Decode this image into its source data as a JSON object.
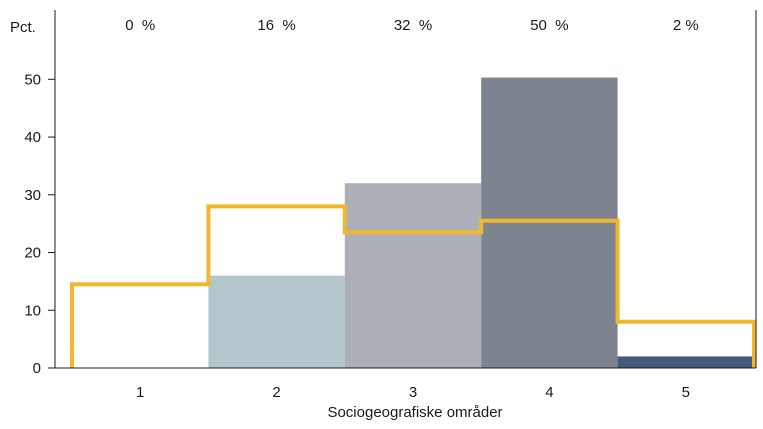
{
  "chart_data": {
    "type": "bar",
    "ylabel": "Pct.",
    "xlabel": "Sociogeografiske områder",
    "categories": [
      "1",
      "2",
      "3",
      "4",
      "5"
    ],
    "top_labels": [
      "0  %",
      "16  %",
      "32  %",
      "50  %",
      "2 %"
    ],
    "yticks": [
      0,
      10,
      20,
      30,
      40,
      50
    ],
    "ylim": [
      0,
      62
    ],
    "grid": false,
    "series": [
      {
        "type": "bar",
        "values": [
          0,
          16,
          32,
          50.3,
          2
        ],
        "colors": [
          "#b3c6cc",
          "#b3c6cc",
          "#acafb7",
          "#7d848f",
          "#435a78"
        ]
      },
      {
        "type": "step",
        "color": "#f3b72d",
        "values": [
          14.5,
          28,
          23.5,
          25.5,
          8
        ]
      }
    ]
  }
}
